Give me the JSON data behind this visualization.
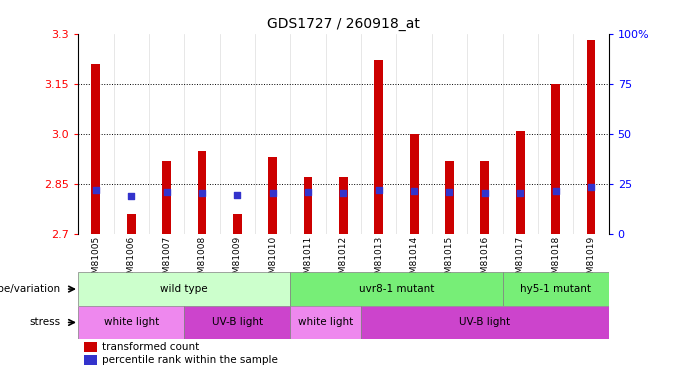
{
  "title": "GDS1727 / 260918_at",
  "samples": [
    "GSM81005",
    "GSM81006",
    "GSM81007",
    "GSM81008",
    "GSM81009",
    "GSM81010",
    "GSM81011",
    "GSM81012",
    "GSM81013",
    "GSM81014",
    "GSM81015",
    "GSM81016",
    "GSM81017",
    "GSM81018",
    "GSM81019"
  ],
  "transformed_count": [
    3.21,
    2.76,
    2.92,
    2.95,
    2.76,
    2.93,
    2.87,
    2.87,
    3.22,
    3.0,
    2.92,
    2.92,
    3.01,
    3.15,
    3.28
  ],
  "percentile_rank_pct": [
    22,
    19,
    21,
    20.5,
    19.5,
    20.5,
    21,
    20.5,
    22,
    21.5,
    21,
    20.5,
    20.5,
    21.5,
    23.5
  ],
  "ylim": [
    2.7,
    3.3
  ],
  "yticks": [
    2.7,
    2.85,
    3.0,
    3.15,
    3.3
  ],
  "right_yticks_pct": [
    0,
    25,
    50,
    75,
    100
  ],
  "bar_color": "#cc0000",
  "dot_color": "#3333cc",
  "bg_color": "#ffffff",
  "xtick_bg_color": "#cccccc",
  "genotype_groups": [
    {
      "label": "wild type",
      "start": 0,
      "end": 6,
      "color": "#ccffcc"
    },
    {
      "label": "uvr8-1 mutant",
      "start": 6,
      "end": 12,
      "color": "#77ee77"
    },
    {
      "label": "hy5-1 mutant",
      "start": 12,
      "end": 15,
      "color": "#77ee77"
    }
  ],
  "stress_groups": [
    {
      "label": "white light",
      "start": 0,
      "end": 3,
      "color": "#ee88ee"
    },
    {
      "label": "UV-B light",
      "start": 3,
      "end": 6,
      "color": "#cc44cc"
    },
    {
      "label": "white light",
      "start": 6,
      "end": 8,
      "color": "#ee88ee"
    },
    {
      "label": "UV-B light",
      "start": 8,
      "end": 15,
      "color": "#cc44cc"
    }
  ],
  "legend_bar_label": "transformed count",
  "legend_dot_label": "percentile rank within the sample",
  "genotype_label": "genotype/variation",
  "stress_label": "stress",
  "bar_width": 0.25
}
